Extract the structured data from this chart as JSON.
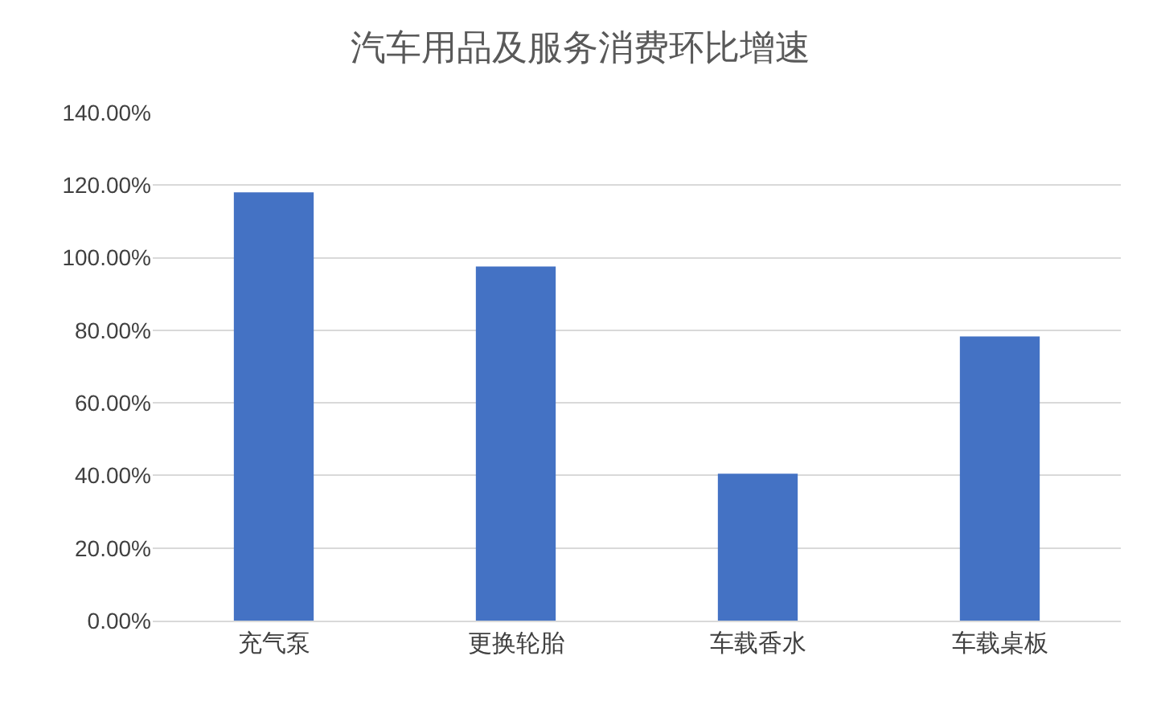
{
  "chart_data": {
    "type": "bar",
    "title": "汽车用品及服务消费环比增速",
    "categories": [
      "充气泵",
      "更换轮胎",
      "车载香水",
      "车载桌板"
    ],
    "values": [
      118,
      97.6,
      40.5,
      78.3
    ],
    "color": "#4472c4",
    "ylim": [
      0,
      140
    ],
    "yticks": [
      {
        "value": 0,
        "label": "0.00%"
      },
      {
        "value": 20,
        "label": "20.00%"
      },
      {
        "value": 40,
        "label": "40.00%"
      },
      {
        "value": 60,
        "label": "60.00%"
      },
      {
        "value": 80,
        "label": "80.00%"
      },
      {
        "value": 100,
        "label": "100.00%"
      },
      {
        "value": 120,
        "label": "120.00%"
      },
      {
        "value": 140,
        "label": "140.00%"
      }
    ],
    "grid": "y"
  }
}
